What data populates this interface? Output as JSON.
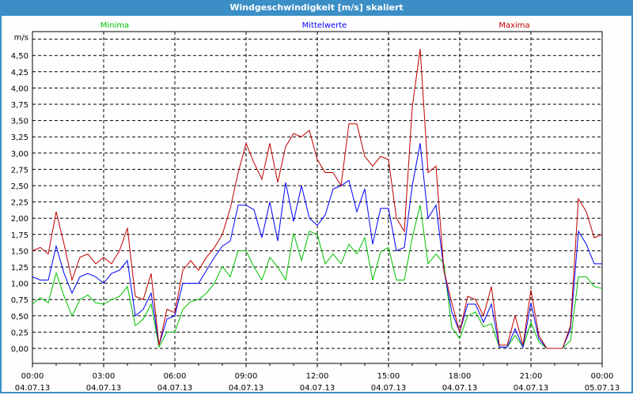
{
  "window": {
    "title": "Windgeschwindigkeit [m/s] skaliert"
  },
  "colors": {
    "frame": "#3b8fc6",
    "minima": "#00c000",
    "mittelwerte": "#0000ff",
    "maxima": "#c00000"
  },
  "chart_data": {
    "type": "line",
    "title": "Windgeschwindigkeit [m/s] skaliert",
    "ylabel": "m/s",
    "ylim": [
      -0.23,
      4.87
    ],
    "grid": true,
    "legend_placement": "top",
    "y_ticks": [
      "0,00",
      "0,25",
      "0,50",
      "0,75",
      "1,00",
      "1,25",
      "1,50",
      "1,75",
      "2,00",
      "2,25",
      "2,50",
      "2,75",
      "3,00",
      "3,25",
      "3,50",
      "3,75",
      "4,00",
      "4,25",
      "4,50"
    ],
    "x_ticks": [
      {
        "time": "00:00",
        "date": "04.07.13"
      },
      {
        "time": "03:00",
        "date": "04.07.13"
      },
      {
        "time": "06:00",
        "date": "04.07.13"
      },
      {
        "time": "09:00",
        "date": "04.07.13"
      },
      {
        "time": "12:00",
        "date": "04.07.13"
      },
      {
        "time": "15:00",
        "date": "04.07.13"
      },
      {
        "time": "18:00",
        "date": "04.07.13"
      },
      {
        "time": "21:00",
        "date": "04.07.13"
      },
      {
        "time": "00:00",
        "date": "05.07.13"
      }
    ],
    "x": [
      "04.07.13 00:00",
      "00:20",
      "00:40",
      "01:00",
      "01:20",
      "01:40",
      "02:00",
      "02:20",
      "02:40",
      "03:00",
      "03:20",
      "03:40",
      "04:00",
      "04:20",
      "04:40",
      "05:00",
      "05:20",
      "05:40",
      "06:00",
      "06:20",
      "06:40",
      "07:00",
      "07:20",
      "07:40",
      "08:00",
      "08:20",
      "08:40",
      "09:00",
      "09:20",
      "09:40",
      "10:00",
      "10:20",
      "10:40",
      "11:00",
      "11:20",
      "11:40",
      "12:00",
      "12:20",
      "12:40",
      "13:00",
      "13:20",
      "13:40",
      "14:00",
      "14:20",
      "14:40",
      "15:00",
      "15:20",
      "15:40",
      "16:00",
      "16:20",
      "16:40",
      "17:00",
      "17:20",
      "17:40",
      "18:00",
      "18:20",
      "18:40",
      "19:00",
      "19:20",
      "19:40",
      "20:00",
      "20:20",
      "20:40",
      "21:00",
      "21:20",
      "21:40",
      "22:00",
      "22:20",
      "22:40",
      "23:00",
      "23:20",
      "23:40",
      "05.07.13 00:00"
    ],
    "series": [
      {
        "name": "Minima",
        "color": "#00c000",
        "values": [
          0.68,
          0.78,
          0.7,
          1.16,
          0.8,
          0.5,
          0.75,
          0.82,
          0.7,
          0.68,
          0.75,
          0.8,
          0.95,
          0.35,
          0.45,
          0.68,
          0.02,
          0.25,
          0.25,
          0.6,
          0.72,
          0.75,
          0.85,
          1.0,
          1.26,
          1.1,
          1.5,
          1.5,
          1.25,
          1.05,
          1.4,
          1.25,
          1.05,
          1.77,
          1.35,
          1.8,
          1.75,
          1.3,
          1.45,
          1.3,
          1.6,
          1.45,
          1.7,
          1.05,
          1.48,
          1.55,
          1.05,
          1.05,
          1.7,
          2.2,
          1.3,
          1.45,
          1.3,
          0.32,
          0.15,
          0.5,
          0.56,
          0.33,
          0.38,
          0.02,
          0.02,
          0.2,
          0.02,
          0.4,
          0.1,
          0,
          0,
          0,
          0.12,
          1.1,
          1.1,
          0.95,
          0.92
        ]
      },
      {
        "name": "Mittelwerte",
        "color": "#0000ff",
        "values": [
          1.1,
          1.05,
          1.05,
          1.57,
          1.15,
          0.85,
          1.1,
          1.15,
          1.1,
          1.0,
          1.15,
          1.2,
          1.35,
          0.5,
          0.6,
          0.85,
          0.05,
          0.45,
          0.5,
          1.0,
          1.0,
          1.0,
          1.2,
          1.4,
          1.57,
          1.65,
          2.2,
          2.2,
          2.13,
          1.7,
          2.25,
          1.65,
          2.55,
          1.95,
          2.5,
          2.0,
          1.89,
          2.05,
          2.45,
          2.5,
          2.58,
          2.1,
          2.45,
          1.6,
          2.15,
          2.15,
          1.5,
          1.55,
          2.5,
          3.15,
          2.0,
          2.2,
          1.2,
          0.56,
          0.25,
          0.68,
          0.68,
          0.4,
          0.68,
          0.02,
          0.02,
          0.3,
          0.02,
          0.7,
          0.15,
          0,
          0,
          0,
          0.3,
          1.8,
          1.6,
          1.3,
          1.3
        ]
      },
      {
        "name": "Maxima",
        "color": "#c00000",
        "values": [
          1.5,
          1.55,
          1.45,
          2.1,
          1.6,
          1.05,
          1.4,
          1.45,
          1.3,
          1.4,
          1.3,
          1.5,
          1.85,
          0.8,
          0.75,
          1.15,
          0.05,
          0.6,
          0.55,
          1.2,
          1.35,
          1.2,
          1.4,
          1.55,
          1.75,
          2.15,
          2.7,
          3.15,
          2.85,
          2.6,
          3.15,
          2.55,
          3.1,
          3.3,
          3.25,
          3.35,
          2.9,
          2.7,
          2.7,
          2.5,
          3.45,
          3.45,
          2.95,
          2.8,
          2.95,
          2.9,
          2.0,
          1.8,
          3.7,
          4.6,
          2.7,
          2.8,
          1.2,
          0.7,
          0.25,
          0.8,
          0.75,
          0.5,
          0.95,
          0.05,
          0.05,
          0.5,
          0.05,
          0.9,
          0.2,
          0,
          0,
          0,
          0.35,
          2.3,
          2.1,
          1.7,
          1.75
        ]
      }
    ]
  }
}
